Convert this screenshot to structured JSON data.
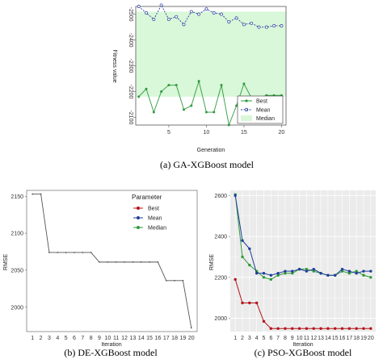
{
  "captions": {
    "a": "(a) GA-XGBoost model",
    "b": "(b) DE-XGBoost model",
    "c": "(c) PSO-XGBoost model"
  },
  "colors": {
    "best_ga": "#2e9a3e",
    "mean_ga": "#2c3d9e",
    "median_fill": "#d9f7d9",
    "best_pso": "#b3151b",
    "mean_pso": "#1f3f9a",
    "median_pso": "#2f9a3a",
    "line_de": "#555555"
  },
  "chart_data": [
    {
      "id": "ga",
      "type": "line",
      "xlabel": "Generation",
      "ylabel": "Fitness value",
      "xlim": [
        0.6,
        20.6
      ],
      "ylim": [
        -2530,
        -2070
      ],
      "xticks": [
        5,
        10,
        15,
        20
      ],
      "yticks": [
        -2100,
        -2200,
        -2300,
        -2400,
        -2500
      ],
      "ytick_labels": [
        "-2100",
        "-2200",
        "-2300",
        "-2400",
        "-2500"
      ],
      "x": [
        1,
        2,
        3,
        4,
        5,
        6,
        7,
        8,
        9,
        10,
        11,
        12,
        13,
        14,
        15,
        16,
        17,
        18,
        19,
        20
      ],
      "legend_position": "bottom-right",
      "series": [
        {
          "name": "Best",
          "style": "solid-dot",
          "values": [
            -2180,
            -2210,
            -2120,
            -2200,
            -2225,
            -2225,
            -2130,
            -2145,
            -2240,
            -2120,
            -2120,
            -2225,
            -2070,
            -2145,
            -2230,
            -2175,
            -2175,
            -2185,
            -2185,
            -2185
          ]
        },
        {
          "name": "Mean",
          "style": "dashed-circle",
          "values": [
            -2530,
            -2505,
            -2480,
            -2535,
            -2480,
            -2490,
            -2460,
            -2510,
            -2500,
            -2520,
            -2505,
            -2500,
            -2470,
            -2485,
            -2460,
            -2465,
            -2450,
            -2450,
            -2455,
            -2455
          ]
        },
        {
          "name": "Median",
          "style": "band",
          "lower": -2510,
          "upper": -2180
        }
      ]
    },
    {
      "id": "de",
      "type": "line",
      "title_note": "",
      "xlabel": "Iteration",
      "ylabel": "RMSE",
      "xlim": [
        0.3,
        20.7
      ],
      "ylim": [
        1967,
        2158
      ],
      "xticks": [
        1,
        2,
        3,
        4,
        5,
        6,
        7,
        8,
        9,
        10,
        11,
        12,
        13,
        14,
        15,
        16,
        17,
        18,
        19,
        20
      ],
      "yticks": [
        2150,
        2100,
        2050,
        2000
      ],
      "legend_title": "Parameter",
      "legend_position": "top-right",
      "x": [
        1,
        2,
        3,
        4,
        5,
        6,
        7,
        8,
        9,
        10,
        11,
        12,
        13,
        14,
        15,
        16,
        17,
        18,
        19,
        20
      ],
      "series": [
        {
          "name": "Best",
          "values": [
            2153,
            2153,
            2074,
            2074,
            2074,
            2074,
            2074,
            2074,
            2061,
            2061,
            2061,
            2061,
            2061,
            2061,
            2061,
            2061,
            2036,
            2036,
            2036,
            1972
          ]
        },
        {
          "name": "Mean",
          "values": [
            2153,
            2153,
            2074,
            2074,
            2074,
            2074,
            2074,
            2074,
            2061,
            2061,
            2061,
            2061,
            2061,
            2061,
            2061,
            2061,
            2036,
            2036,
            2036,
            1972
          ]
        },
        {
          "name": "Median",
          "values": [
            2153,
            2153,
            2074,
            2074,
            2074,
            2074,
            2074,
            2074,
            2061,
            2061,
            2061,
            2061,
            2061,
            2061,
            2061,
            2061,
            2036,
            2036,
            2036,
            1972
          ]
        }
      ]
    },
    {
      "id": "pso",
      "type": "line",
      "xlabel": "Iteration",
      "ylabel": "RMSE",
      "xlim": [
        0.3,
        20.7
      ],
      "ylim": [
        1935,
        2625
      ],
      "xticks": [
        1,
        2,
        3,
        4,
        5,
        6,
        7,
        8,
        9,
        10,
        11,
        12,
        13,
        14,
        15,
        16,
        17,
        18,
        19,
        20
      ],
      "yticks": [
        2600,
        2400,
        2200,
        2000
      ],
      "x": [
        1,
        2,
        3,
        4,
        5,
        6,
        7,
        8,
        9,
        10,
        11,
        12,
        13,
        14,
        15,
        16,
        17,
        18,
        19,
        20
      ],
      "series": [
        {
          "name": "Best",
          "values": [
            2190,
            2075,
            2075,
            2075,
            1985,
            1950,
            1950,
            1950,
            1950,
            1950,
            1950,
            1950,
            1950,
            1950,
            1950,
            1950,
            1950,
            1950,
            1950,
            1950
          ]
        },
        {
          "name": "Mean",
          "values": [
            2600,
            2380,
            2340,
            2220,
            2220,
            2210,
            2220,
            2230,
            2230,
            2240,
            2230,
            2240,
            2220,
            2210,
            2210,
            2240,
            2230,
            2220,
            2230,
            2230
          ]
        },
        {
          "name": "Median",
          "values": [
            2605,
            2300,
            2260,
            2230,
            2200,
            2190,
            2210,
            2220,
            2220,
            2240,
            2240,
            2230,
            2220,
            2210,
            2210,
            2230,
            2220,
            2230,
            2210,
            2200
          ]
        }
      ]
    }
  ]
}
